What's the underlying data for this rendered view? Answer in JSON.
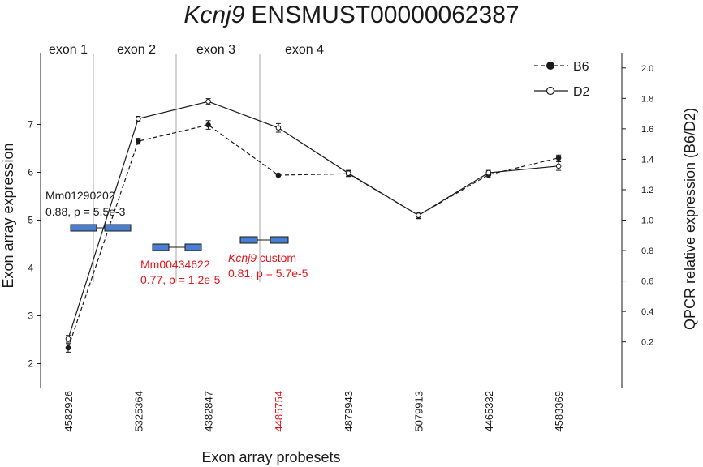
{
  "chart_data": {
    "type": "line",
    "title": {
      "gene": "Kcnj9",
      "transcript": "ENSMUST00000062387"
    },
    "xlabel": "Exon array probesets",
    "ylabel": "Exon array expression",
    "ylabel_right": "QPCR relative expression (B6/D2)",
    "categories": [
      "4582926",
      "5325364",
      "4382847",
      "4485754",
      "4879943",
      "5079913",
      "4465332",
      "4583369"
    ],
    "highlighted_category": "4485754",
    "highlight_color": "#e8141c",
    "ylim": [
      1.5,
      8.5
    ],
    "yticks": [
      2,
      3,
      4,
      5,
      6,
      7
    ],
    "ylim_right": [
      -0.1,
      2.1
    ],
    "yticks_right": [
      "0.2",
      "0.4",
      "0.6",
      "0.8",
      "1.0",
      "1.2",
      "1.4",
      "1.6",
      "1.8",
      "2.0"
    ],
    "exons": [
      "exon 1",
      "exon 2",
      "exon 3",
      "exon 4"
    ],
    "series": [
      {
        "name": "B6",
        "marker": "filled",
        "line": "dashed",
        "values": [
          2.33,
          6.65,
          6.99,
          5.94,
          5.97,
          5.1,
          5.95,
          6.3
        ],
        "errors": [
          0.09,
          0.06,
          0.09,
          0.03,
          0.06,
          0.06,
          0.06,
          0.06
        ]
      },
      {
        "name": "D2",
        "marker": "open",
        "line": "solid",
        "values": [
          2.52,
          7.12,
          7.48,
          6.93,
          5.98,
          5.1,
          5.99,
          6.13
        ],
        "errors": [
          0.07,
          0.05,
          0.06,
          0.09,
          0.06,
          0.07,
          0.05,
          0.09
        ]
      }
    ],
    "annotations": [
      {
        "id": "mm01290202",
        "assay": "Mm01290202",
        "stats": "0.88, p = 5.5e-3",
        "color": "#1a1a1a",
        "italic_prefix": ""
      },
      {
        "id": "mm00434622",
        "assay": "Mm00434622",
        "stats": "0.77, p = 1.2e-5",
        "color": "#e8141c",
        "italic_prefix": ""
      },
      {
        "id": "kcnj9custom",
        "assay": " custom",
        "italic_prefix": "Kcnj9",
        "stats": "0.81, p = 5.7e-5",
        "color": "#e8141c"
      }
    ],
    "assay_box_color": "#4a7fd0",
    "legend_position": "top-right",
    "grid": false
  }
}
